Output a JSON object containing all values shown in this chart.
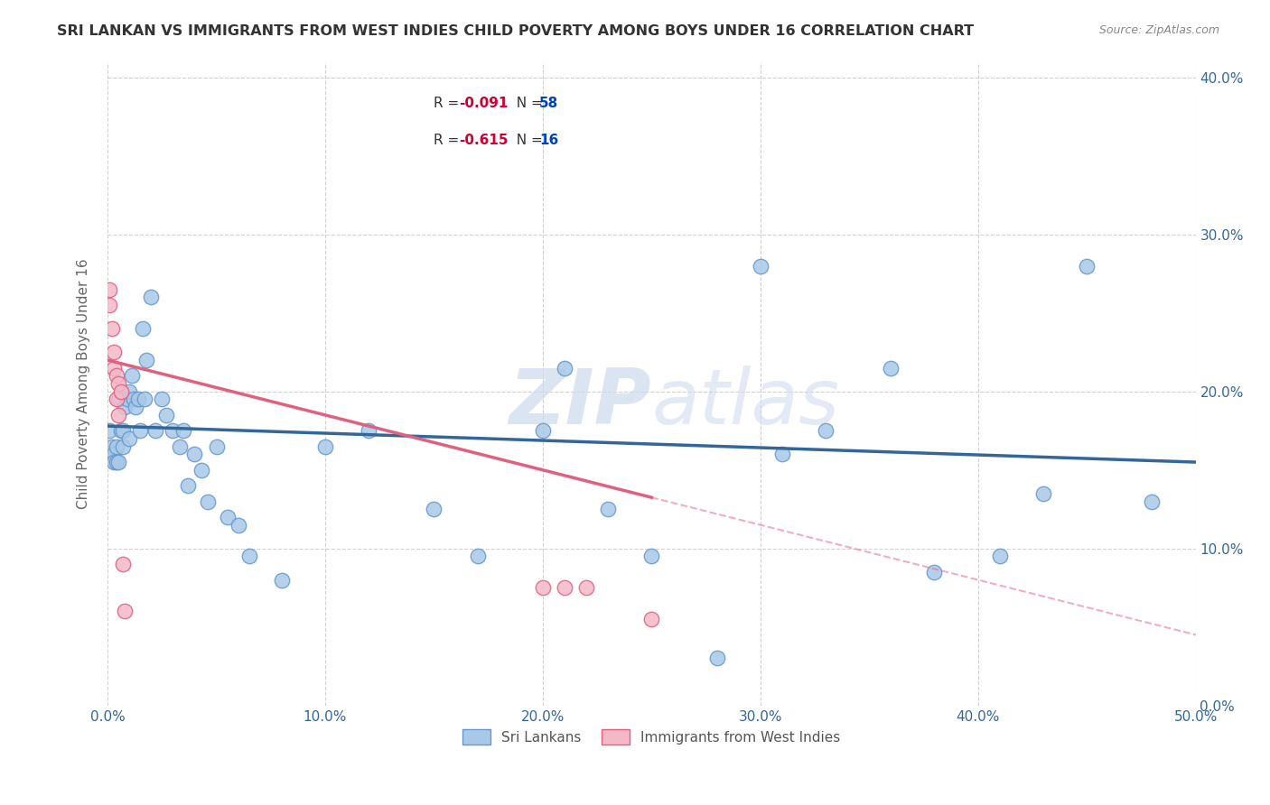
{
  "title": "SRI LANKAN VS IMMIGRANTS FROM WEST INDIES CHILD POVERTY AMONG BOYS UNDER 16 CORRELATION CHART",
  "source": "Source: ZipAtlas.com",
  "ylabel": "Child Poverty Among Boys Under 16",
  "xlim": [
    0,
    0.5
  ],
  "ylim": [
    0,
    0.41
  ],
  "background_color": "#ffffff",
  "grid_color": "#cccccc",
  "title_color": "#333333",
  "title_fontsize": 11.5,
  "sri_lankans": {
    "x": [
      0.001,
      0.001,
      0.002,
      0.003,
      0.003,
      0.004,
      0.004,
      0.005,
      0.005,
      0.006,
      0.007,
      0.007,
      0.008,
      0.009,
      0.01,
      0.01,
      0.011,
      0.012,
      0.013,
      0.014,
      0.015,
      0.016,
      0.017,
      0.018,
      0.02,
      0.022,
      0.025,
      0.027,
      0.03,
      0.033,
      0.035,
      0.037,
      0.04,
      0.043,
      0.046,
      0.05,
      0.055,
      0.06,
      0.065,
      0.08,
      0.1,
      0.12,
      0.15,
      0.17,
      0.2,
      0.21,
      0.23,
      0.25,
      0.28,
      0.3,
      0.31,
      0.33,
      0.36,
      0.38,
      0.41,
      0.43,
      0.45,
      0.48
    ],
    "y": [
      0.175,
      0.16,
      0.165,
      0.16,
      0.155,
      0.165,
      0.155,
      0.155,
      0.195,
      0.175,
      0.165,
      0.175,
      0.19,
      0.195,
      0.17,
      0.2,
      0.21,
      0.195,
      0.19,
      0.195,
      0.175,
      0.24,
      0.195,
      0.22,
      0.26,
      0.175,
      0.195,
      0.185,
      0.175,
      0.165,
      0.175,
      0.14,
      0.16,
      0.15,
      0.13,
      0.165,
      0.12,
      0.115,
      0.095,
      0.08,
      0.165,
      0.175,
      0.125,
      0.095,
      0.175,
      0.215,
      0.125,
      0.095,
      0.03,
      0.28,
      0.16,
      0.175,
      0.215,
      0.085,
      0.095,
      0.135,
      0.28,
      0.13
    ],
    "color": "#a8c8e8",
    "edge_color": "#6699cc",
    "r": -0.091,
    "n": 58,
    "trend_color": "#336699",
    "trend_start_y": 0.178,
    "trend_end_y": 0.155
  },
  "west_indies": {
    "x": [
      0.001,
      0.001,
      0.002,
      0.003,
      0.003,
      0.004,
      0.004,
      0.005,
      0.005,
      0.006,
      0.007,
      0.008,
      0.2,
      0.21,
      0.22,
      0.25
    ],
    "y": [
      0.265,
      0.255,
      0.24,
      0.225,
      0.215,
      0.21,
      0.195,
      0.205,
      0.185,
      0.2,
      0.09,
      0.06,
      0.075,
      0.075,
      0.075,
      0.055
    ],
    "color": "#f4b8c8",
    "edge_color": "#e06080",
    "r": -0.615,
    "n": 16,
    "trend_color": "#e06080",
    "trend_start_y": 0.22,
    "trend_end_y": 0.045
  },
  "legend_box_color": "#ffffff",
  "legend_box_edge": "#aaaacc",
  "r_color": "#cc0033",
  "n_color": "#0044bb"
}
